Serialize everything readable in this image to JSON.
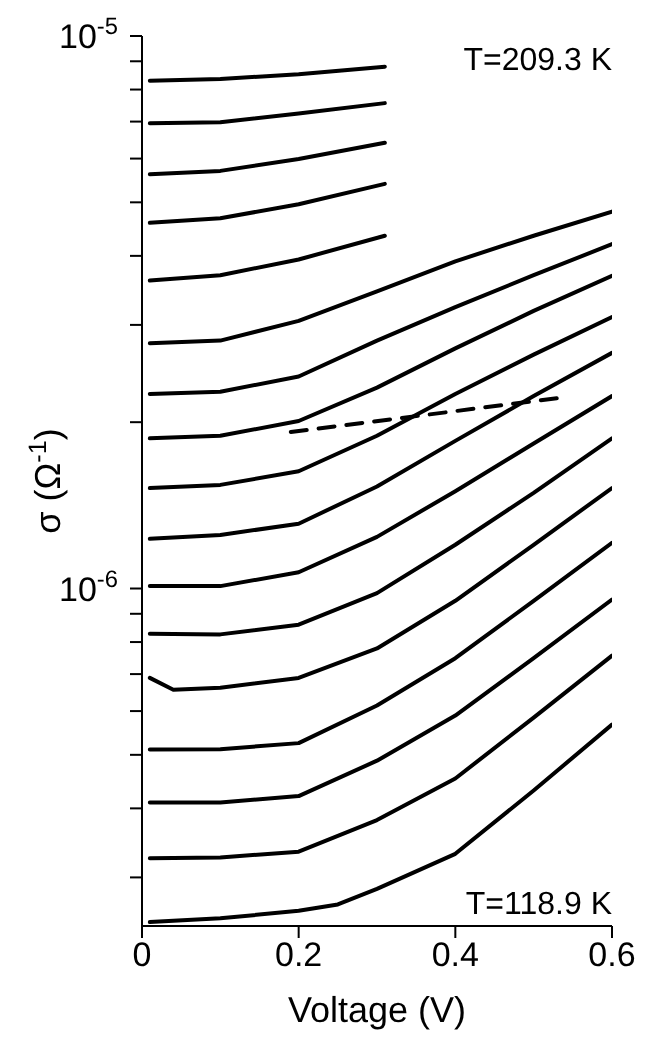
{
  "chart_data": {
    "type": "line",
    "xlabel": "Voltage (V)",
    "ylabel": "σ (Ω$^{-1}$)",
    "log": "y",
    "xlim": [
      0,
      0.6
    ],
    "xticks": [
      0,
      0.2,
      0.4,
      0.6
    ],
    "ylim": [
      2.45e-07,
      1e-05
    ],
    "yticks": [
      {
        "value": 1e-05,
        "label": "10$^{-5}$"
      },
      {
        "value": 9e-06,
        "label": null
      },
      {
        "value": 8e-06,
        "label": null
      },
      {
        "value": 7e-06,
        "label": null
      },
      {
        "value": 6e-06,
        "label": null
      },
      {
        "value": 5e-06,
        "label": null
      },
      {
        "value": 4e-06,
        "label": null
      },
      {
        "value": 3e-06,
        "label": null
      },
      {
        "value": 2e-06,
        "label": null
      },
      {
        "value": 1e-06,
        "label": "10$^{-6}$"
      },
      {
        "value": 9e-07,
        "label": null
      },
      {
        "value": 8e-07,
        "label": null
      },
      {
        "value": 7e-07,
        "label": null
      },
      {
        "value": 6e-07,
        "label": null
      },
      {
        "value": 5e-07,
        "label": null
      },
      {
        "value": 4e-07,
        "label": null
      },
      {
        "value": 3e-07,
        "label": null
      }
    ],
    "annotations": [
      "T=209.3 K",
      "T=118.9 K"
    ],
    "series": [
      {
        "color": "#000000",
        "x": [
          0.01,
          0.1,
          0.2,
          0.31
        ],
        "values": [
          8.3e-06,
          8.36e-06,
          8.53e-06,
          8.8e-06
        ]
      },
      {
        "color": "#000000",
        "x": [
          0.01,
          0.1,
          0.2,
          0.31
        ],
        "values": [
          6.95e-06,
          6.98e-06,
          7.24e-06,
          7.56e-06
        ]
      },
      {
        "color": "#000000",
        "x": [
          0.01,
          0.1,
          0.2,
          0.31
        ],
        "values": [
          5.62e-06,
          5.7e-06,
          5.99e-06,
          6.41e-06
        ]
      },
      {
        "color": "#000000",
        "x": [
          0.01,
          0.1,
          0.2,
          0.31
        ],
        "values": [
          4.59e-06,
          4.68e-06,
          4.96e-06,
          5.4e-06
        ]
      },
      {
        "color": "#000000",
        "x": [
          0.01,
          0.1,
          0.2,
          0.31
        ],
        "values": [
          3.61e-06,
          3.69e-06,
          3.94e-06,
          4.35e-06
        ]
      },
      {
        "color": "#000000",
        "x": [
          0.01,
          0.1,
          0.2,
          0.3,
          0.4,
          0.5,
          0.6
        ],
        "values": [
          2.78e-06,
          2.81e-06,
          3.05e-06,
          3.45e-06,
          3.91e-06,
          4.35e-06,
          4.81e-06
        ]
      },
      {
        "color": "#000000",
        "x": [
          0.01,
          0.1,
          0.2,
          0.3,
          0.4,
          0.5,
          0.6
        ],
        "values": [
          2.25e-06,
          2.27e-06,
          2.42e-06,
          2.81e-06,
          3.23e-06,
          3.69e-06,
          4.2e-06
        ]
      },
      {
        "color": "#000000",
        "x": [
          0.01,
          0.1,
          0.2,
          0.3,
          0.4,
          0.5,
          0.6
        ],
        "values": [
          1.87e-06,
          1.89e-06,
          2.01e-06,
          2.31e-06,
          2.72e-06,
          3.18e-06,
          3.68e-06
        ]
      },
      {
        "color": "#000000",
        "x": [
          0.01,
          0.1,
          0.2,
          0.3,
          0.4,
          0.5,
          0.6
        ],
        "values": [
          1.52e-06,
          1.54e-06,
          1.63e-06,
          1.89e-06,
          2.25e-06,
          2.65e-06,
          3.1e-06
        ]
      },
      {
        "color": "#000000",
        "x": [
          0.01,
          0.1,
          0.2,
          0.3,
          0.4,
          0.5,
          0.6
        ],
        "values": [
          1.23e-06,
          1.25e-06,
          1.31e-06,
          1.53e-06,
          1.85e-06,
          2.23e-06,
          2.67e-06
        ]
      },
      {
        "color": "#000000",
        "x": [
          0.01,
          0.1,
          0.2,
          0.3,
          0.4,
          0.5,
          0.6
        ],
        "values": [
          1.01e-06,
          1.01e-06,
          1.07e-06,
          1.24e-06,
          1.5e-06,
          1.83e-06,
          2.23e-06
        ]
      },
      {
        "color": "#000000",
        "x": [
          0.01,
          0.1,
          0.2,
          0.3,
          0.4,
          0.5,
          0.6
        ],
        "values": [
          8.28e-07,
          8.26e-07,
          8.6e-07,
          9.81e-07,
          1.2e-06,
          1.49e-06,
          1.87e-06
        ]
      },
      {
        "color": "#000000",
        "x": [
          0.01,
          0.04,
          0.1,
          0.2,
          0.3,
          0.4,
          0.5,
          0.6
        ],
        "values": [
          6.89e-07,
          6.56e-07,
          6.61e-07,
          6.89e-07,
          7.79e-07,
          9.5e-07,
          1.2e-06,
          1.52e-06
        ]
      },
      {
        "color": "#000000",
        "x": [
          0.01,
          0.1,
          0.2,
          0.3,
          0.4,
          0.5,
          0.6
        ],
        "values": [
          5.11e-07,
          5.12e-07,
          5.25e-07,
          6.14e-07,
          7.48e-07,
          9.5e-07,
          1.21e-06
        ]
      },
      {
        "color": "#000000",
        "x": [
          0.01,
          0.1,
          0.2,
          0.3,
          0.4,
          0.5,
          0.6
        ],
        "values": [
          4.1e-07,
          4.1e-07,
          4.21e-07,
          4.88e-07,
          5.89e-07,
          7.48e-07,
          9.55e-07
        ]
      },
      {
        "color": "#000000",
        "x": [
          0.01,
          0.1,
          0.2,
          0.3,
          0.4,
          0.5,
          0.6
        ],
        "values": [
          3.25e-07,
          3.26e-07,
          3.34e-07,
          3.81e-07,
          4.53e-07,
          5.84e-07,
          7.56e-07
        ]
      },
      {
        "color": "#000000",
        "x": [
          0.01,
          0.1,
          0.2,
          0.25,
          0.3,
          0.4,
          0.5,
          0.6
        ],
        "values": [
          2.49e-07,
          2.53e-07,
          2.61e-07,
          2.68e-07,
          2.86e-07,
          3.31e-07,
          4.31e-07,
          5.67e-07
        ]
      },
      {
        "color": "#000000",
        "line_style": "dashed",
        "x": [
          0.19,
          0.53
        ],
        "values": [
          1.92e-06,
          2.21e-06
        ]
      }
    ]
  }
}
